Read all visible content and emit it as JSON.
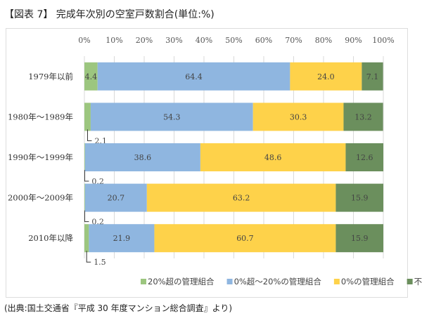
{
  "title": "【図表 7】 完成年次別の空室戸数割合(単位:%)",
  "source": "(出典:国土交通省『平成 30 年度マンション総合調査』より)",
  "chart_data": {
    "type": "bar",
    "orientation": "horizontal-stacked-100",
    "categories": [
      "1979年以前",
      "1980年～1989年",
      "1990年～1999年",
      "2000年～2009年",
      "2010年以降"
    ],
    "series": [
      {
        "name": "20%超の管理組合",
        "color": "#9cc67f",
        "values": [
          4.4,
          2.1,
          0.2,
          0.2,
          1.5
        ]
      },
      {
        "name": "0%超～20%の管理組合",
        "color": "#8fb6e0",
        "values": [
          64.4,
          54.3,
          38.6,
          20.7,
          21.9
        ]
      },
      {
        "name": "0%の管理組合",
        "color": "#fed24a",
        "values": [
          24.0,
          30.3,
          48.6,
          63.2,
          60.7
        ]
      },
      {
        "name": "不明",
        "color": "#6b8f5d",
        "values": [
          7.1,
          13.2,
          12.6,
          15.9,
          15.9
        ]
      }
    ],
    "xticks": [
      "0%",
      "10%",
      "20%",
      "30%",
      "40%",
      "50%",
      "60%",
      "70%",
      "80%",
      "90%",
      "100%"
    ],
    "xlim": [
      0,
      100
    ],
    "grid": true,
    "legend": "bottom"
  }
}
